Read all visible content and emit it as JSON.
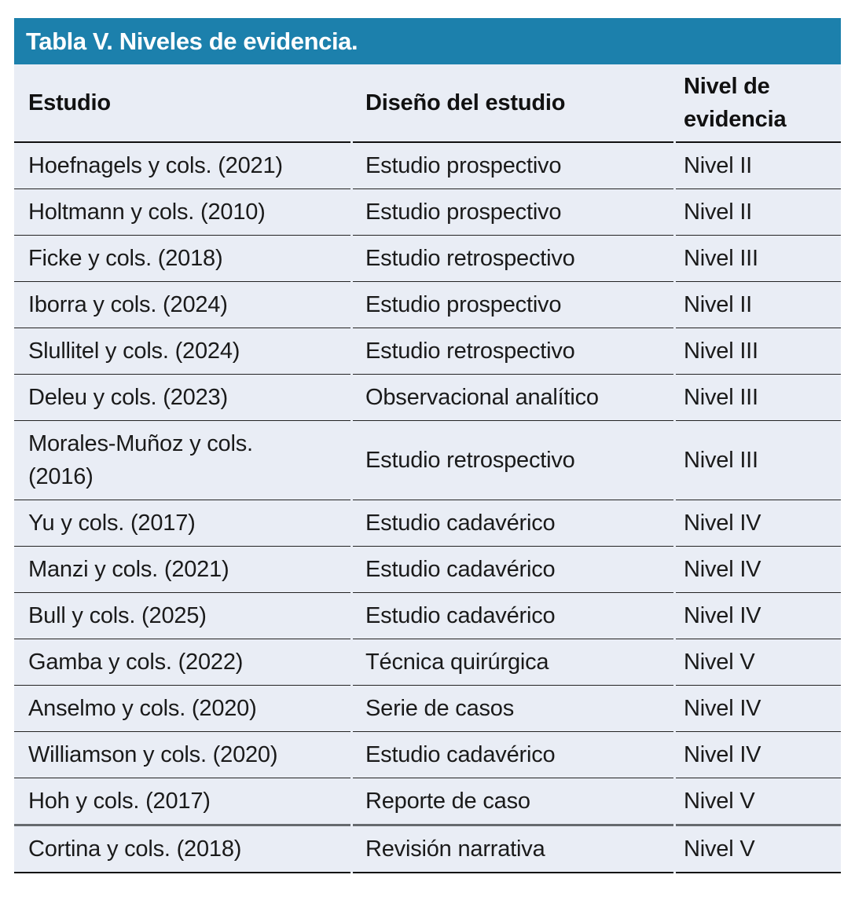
{
  "table": {
    "title": "Tabla V. Niveles de evidencia.",
    "columns": [
      "Estudio",
      "Diseño del estudio",
      "Nivel de evidencia"
    ],
    "rows": [
      {
        "estudio": "Hoefnagels y cols. (2021)",
        "diseno": "Estudio prospectivo",
        "nivel": "Nivel II"
      },
      {
        "estudio": "Holtmann y cols. (2010)",
        "diseno": "Estudio prospectivo",
        "nivel": "Nivel II"
      },
      {
        "estudio": "Ficke y cols. (2018)",
        "diseno": "Estudio retrospectivo",
        "nivel": "Nivel III"
      },
      {
        "estudio": "Iborra y cols. (2024)",
        "diseno": "Estudio prospectivo",
        "nivel": "Nivel II"
      },
      {
        "estudio": "Slullitel y cols. (2024)",
        "diseno": "Estudio retrospectivo",
        "nivel": "Nivel III"
      },
      {
        "estudio": "Deleu y cols. (2023)",
        "diseno": "Observacional analítico",
        "nivel": "Nivel III"
      },
      {
        "estudio": "Morales-Muñoz y cols.\n(2016)",
        "diseno": "Estudio retrospectivo",
        "nivel": "Nivel III"
      },
      {
        "estudio": "Yu y cols. (2017)",
        "diseno": "Estudio cadavérico",
        "nivel": "Nivel IV"
      },
      {
        "estudio": "Manzi y cols. (2021)",
        "diseno": "Estudio cadavérico",
        "nivel": "Nivel IV"
      },
      {
        "estudio": "Bull y cols. (2025)",
        "diseno": "Estudio cadavérico",
        "nivel": "Nivel IV"
      },
      {
        "estudio": "Gamba y cols. (2022)",
        "diseno": "Técnica quirúrgica",
        "nivel": "Nivel V"
      },
      {
        "estudio": "Anselmo y cols. (2020)",
        "diseno": "Serie de casos",
        "nivel": "Nivel IV"
      },
      {
        "estudio": "Williamson y cols. (2020)",
        "diseno": "Estudio cadavérico",
        "nivel": "Nivel IV"
      },
      {
        "estudio": "Hoh y cols. (2017)",
        "diseno": "Reporte de caso",
        "nivel": "Nivel V"
      },
      {
        "estudio": "Cortina y cols. (2018)",
        "diseno": "Revisión narrativa",
        "nivel": "Nivel V"
      }
    ],
    "colors": {
      "title_bar_bg": "#1c80ac",
      "title_text": "#ffffff",
      "table_bg": "#e9edf5",
      "body_text": "#1a1a1a"
    }
  }
}
